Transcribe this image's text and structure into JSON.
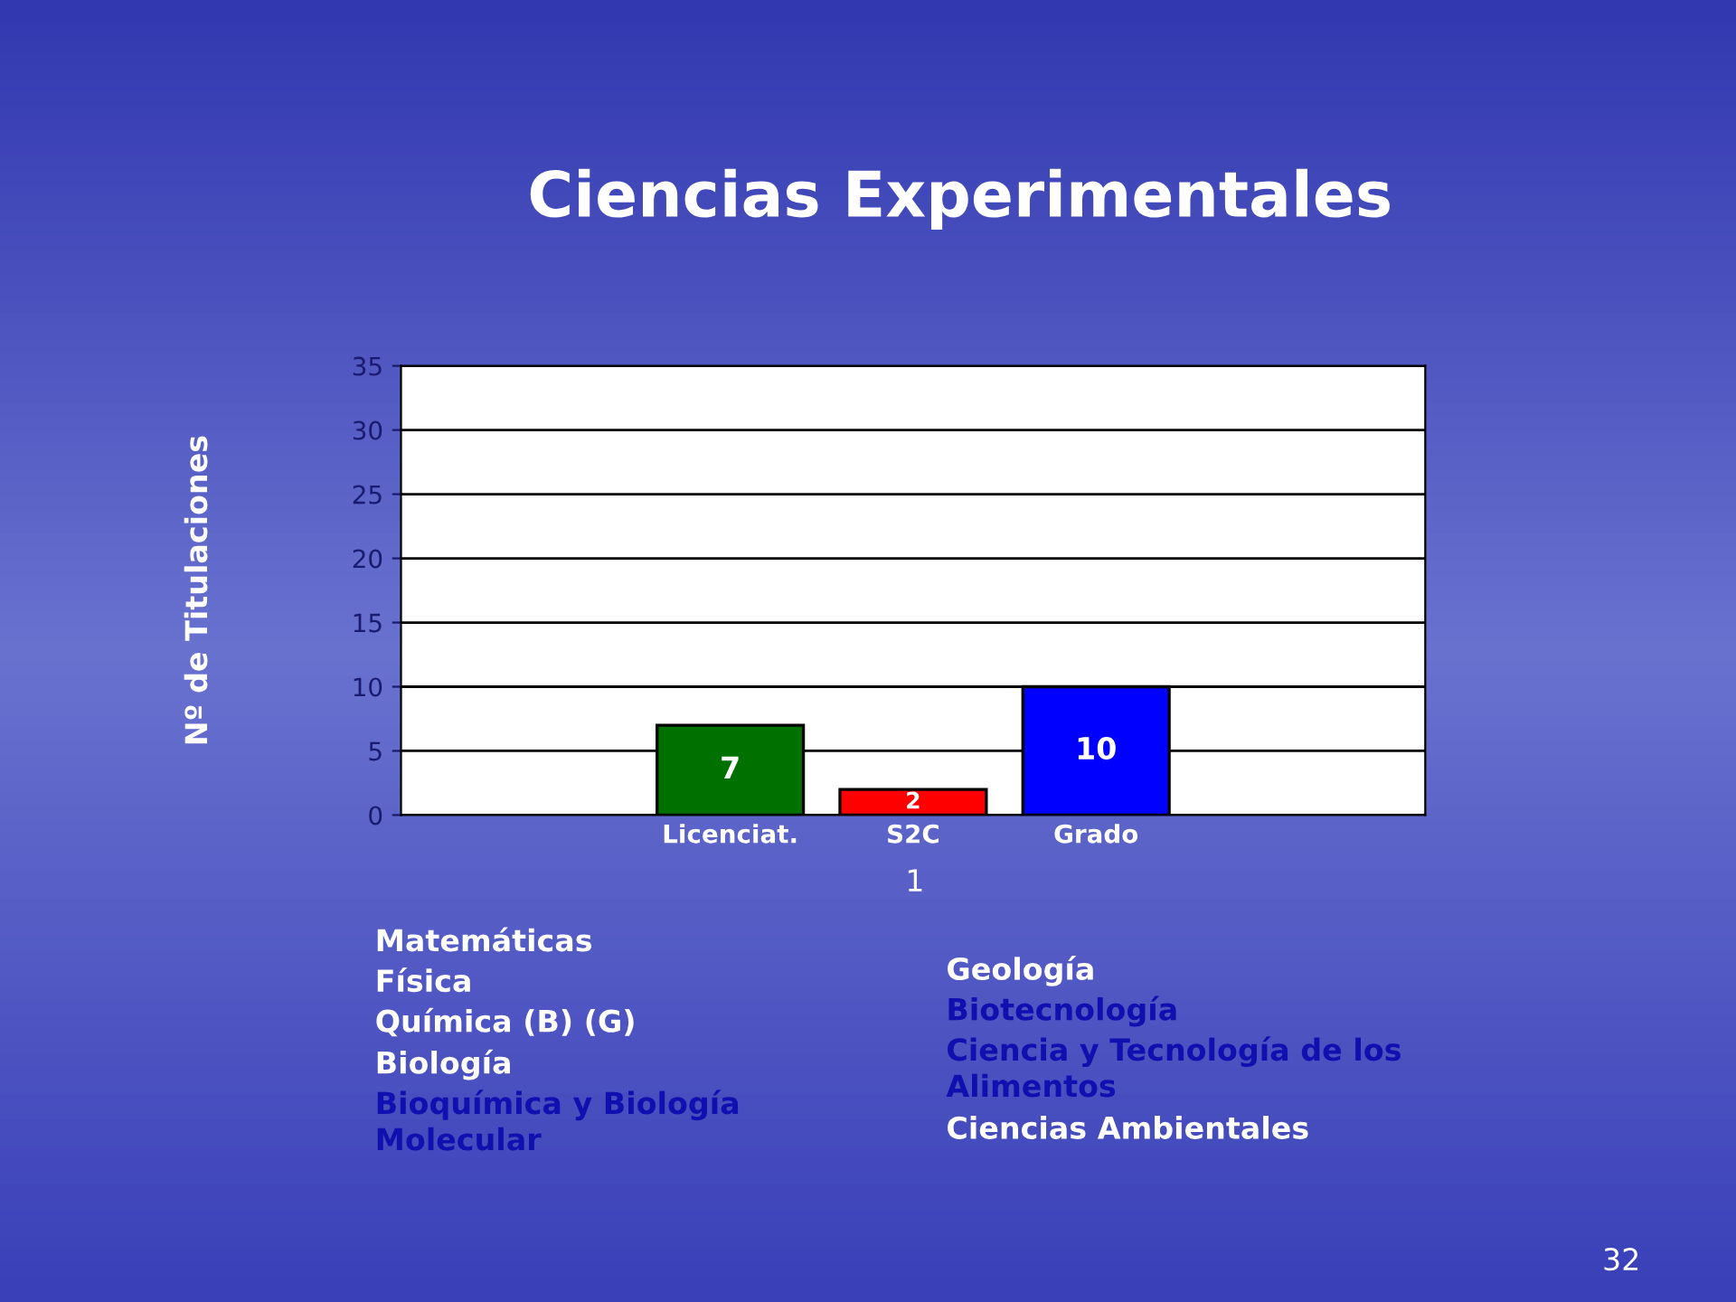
{
  "chart_data": {
    "type": "bar",
    "title": "Ciencias Experimentales",
    "ylabel": "Nº de Titulaciones",
    "categories": [
      "Licenciat.",
      "S2C",
      "Grado"
    ],
    "values": [
      7,
      2,
      10
    ],
    "colors": [
      "#007000",
      "#ff0000",
      "#0000ff"
    ],
    "data_labels": true,
    "ylim": [
      0,
      35
    ],
    "yticks": [
      0,
      5,
      10,
      15,
      20,
      25,
      30,
      35
    ],
    "grid": "y",
    "annotations": [
      "1",
      "Matemáticas",
      "Física",
      "Química (B) (G)",
      "Biología",
      "Bioquímica y Biología\nMolecular",
      "Geología",
      "Biotecnología",
      "Ciencia y Tecnología de los\nAlimentos",
      "Ciencias Ambientales",
      "32"
    ]
  }
}
